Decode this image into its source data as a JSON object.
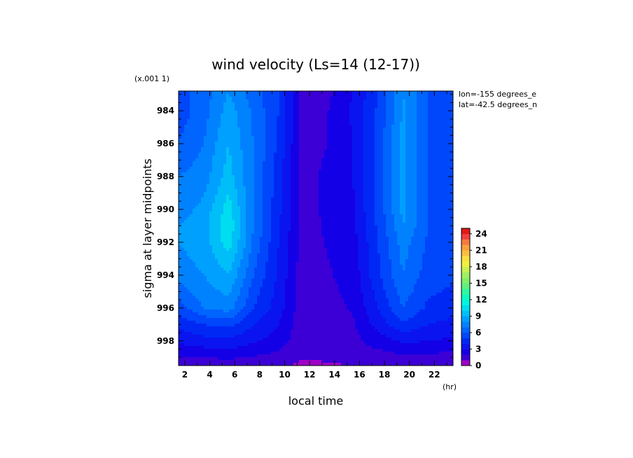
{
  "chart_data": {
    "type": "heatmap",
    "title": "wind velocity (Ls=14 (12-17))",
    "xlabel": "local time",
    "ylabel": "sigma at layer midpoints",
    "x_unit": "(hr)",
    "y_scale_note": "(x.001 1)",
    "annotations": [
      "lon=-155 degrees_e",
      "lat=-42.5 degrees_n"
    ],
    "xlim": [
      1.5,
      23.5
    ],
    "ylim": [
      999.5,
      982.8
    ],
    "x_ticks": [
      2,
      4,
      6,
      8,
      10,
      12,
      14,
      16,
      18,
      20,
      22
    ],
    "y_ticks": [
      984,
      986,
      988,
      990,
      992,
      994,
      996,
      998
    ],
    "x": [
      1.5,
      3.5,
      5.5,
      7.5,
      9.5,
      11.5,
      13.5,
      15.5,
      17.5,
      19.5,
      21.5,
      23.5
    ],
    "y": [
      982.8,
      984,
      986,
      988,
      990,
      991,
      992,
      994,
      996,
      997,
      998,
      998.6,
      999.1,
      999.5
    ],
    "z": [
      [
        5.5,
        6.5,
        8.0,
        6.5,
        5.0,
        1.5,
        1.8,
        3.0,
        5.0,
        8.0,
        6.0,
        5.0
      ],
      [
        5.5,
        6.5,
        8.5,
        6.8,
        5.0,
        1.6,
        2.0,
        3.2,
        5.2,
        8.2,
        6.0,
        5.0
      ],
      [
        6.0,
        7.0,
        9.0,
        7.0,
        4.8,
        1.5,
        2.0,
        3.0,
        5.3,
        8.3,
        6.0,
        5.2
      ],
      [
        7.0,
        7.5,
        9.5,
        7.0,
        4.5,
        1.5,
        2.3,
        3.0,
        5.3,
        8.3,
        6.0,
        5.4
      ],
      [
        7.5,
        8.3,
        10.5,
        7.0,
        4.3,
        1.5,
        2.3,
        2.9,
        5.3,
        8.3,
        6.0,
        5.6
      ],
      [
        8.0,
        8.6,
        10.8,
        7.0,
        4.2,
        1.5,
        2.2,
        2.8,
        5.2,
        8.0,
        6.0,
        5.6
      ],
      [
        8.0,
        8.5,
        10.5,
        6.8,
        4.0,
        1.5,
        2.1,
        2.6,
        5.0,
        7.5,
        5.8,
        5.5
      ],
      [
        7.5,
        8.0,
        9.0,
        6.0,
        3.8,
        1.4,
        1.9,
        2.4,
        4.8,
        7.0,
        5.5,
        5.2
      ],
      [
        5.5,
        7.0,
        7.5,
        5.0,
        3.5,
        1.3,
        1.7,
        2.1,
        4.0,
        6.0,
        4.8,
        4.5
      ],
      [
        4.2,
        5.0,
        5.3,
        4.0,
        3.0,
        1.3,
        1.6,
        1.9,
        3.4,
        4.8,
        4.0,
        3.7
      ],
      [
        3.2,
        3.6,
        3.8,
        3.2,
        2.5,
        1.3,
        1.5,
        1.7,
        2.5,
        3.2,
        3.0,
        2.8
      ],
      [
        2.5,
        2.7,
        2.9,
        2.4,
        2.0,
        1.2,
        1.3,
        1.5,
        1.9,
        2.3,
        2.2,
        2.1
      ],
      [
        1.8,
        1.9,
        2.0,
        1.8,
        1.6,
        1.0,
        1.1,
        1.3,
        1.5,
        1.7,
        1.6,
        1.5
      ],
      [
        1.3,
        1.4,
        1.4,
        1.3,
        1.2,
        0.8,
        0.9,
        1.0,
        1.2,
        1.3,
        1.2,
        1.1
      ]
    ],
    "colorbar": {
      "min": 0,
      "max": 25,
      "step": 1,
      "tick_labels": [
        "0",
        "3",
        "6",
        "9",
        "12",
        "15",
        "18",
        "21",
        "24"
      ],
      "tick_values": [
        0,
        3,
        6,
        9,
        12,
        15,
        18,
        21,
        24
      ],
      "colors": [
        "#a000c8",
        "#3c00d6",
        "#1400e6",
        "#0a14f0",
        "#0028f5",
        "#0046fa",
        "#0064ff",
        "#0082ff",
        "#00a0ff",
        "#00bef8",
        "#00dcf0",
        "#00f5e0",
        "#10f8c0",
        "#30f8a0",
        "#60f080",
        "#80f068",
        "#a0f060",
        "#c8f050",
        "#f0f040",
        "#f8e040",
        "#f8c040",
        "#f8a040",
        "#f87840",
        "#f04040",
        "#e01818"
      ]
    }
  }
}
